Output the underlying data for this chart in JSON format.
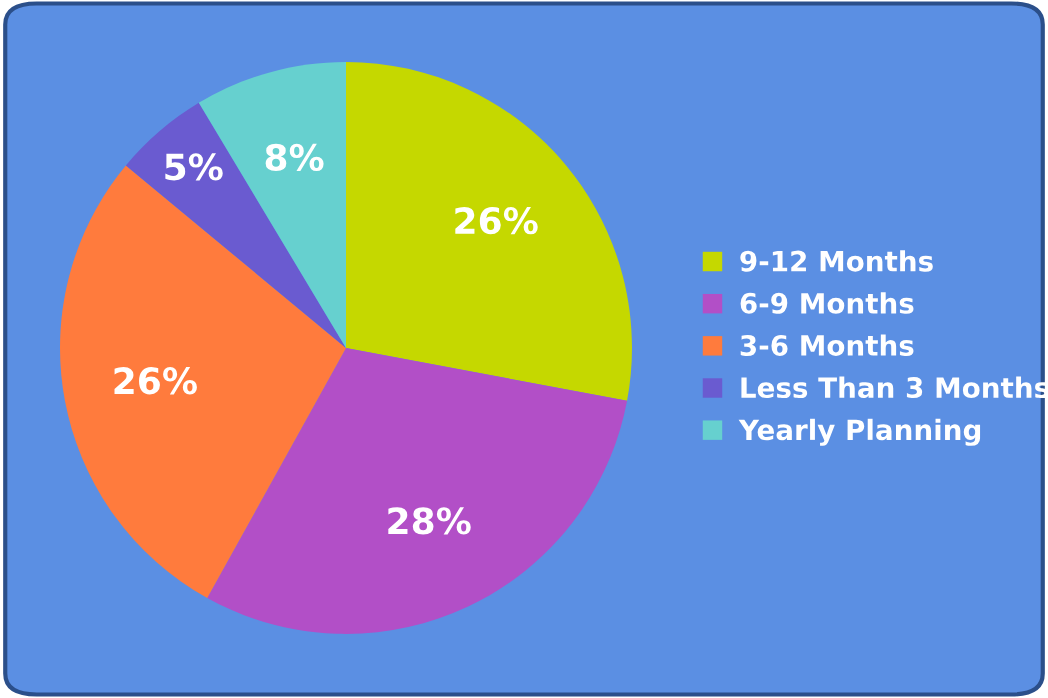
{
  "chart_data": {
    "type": "pie",
    "categories": [
      "9-12 Months",
      "6-9 Months",
      "3-6 Months",
      "Less Than 3 Months",
      "Yearly Planning"
    ],
    "values": [
      26,
      28,
      26,
      5,
      8
    ],
    "colors": [
      "#c5d800",
      "#b24fc7",
      "#ff7b3d",
      "#6a5bd0",
      "#66d0cf"
    ],
    "value_labels": [
      "26%",
      "28%",
      "26%",
      "5%",
      "8%"
    ],
    "legend": "right"
  }
}
